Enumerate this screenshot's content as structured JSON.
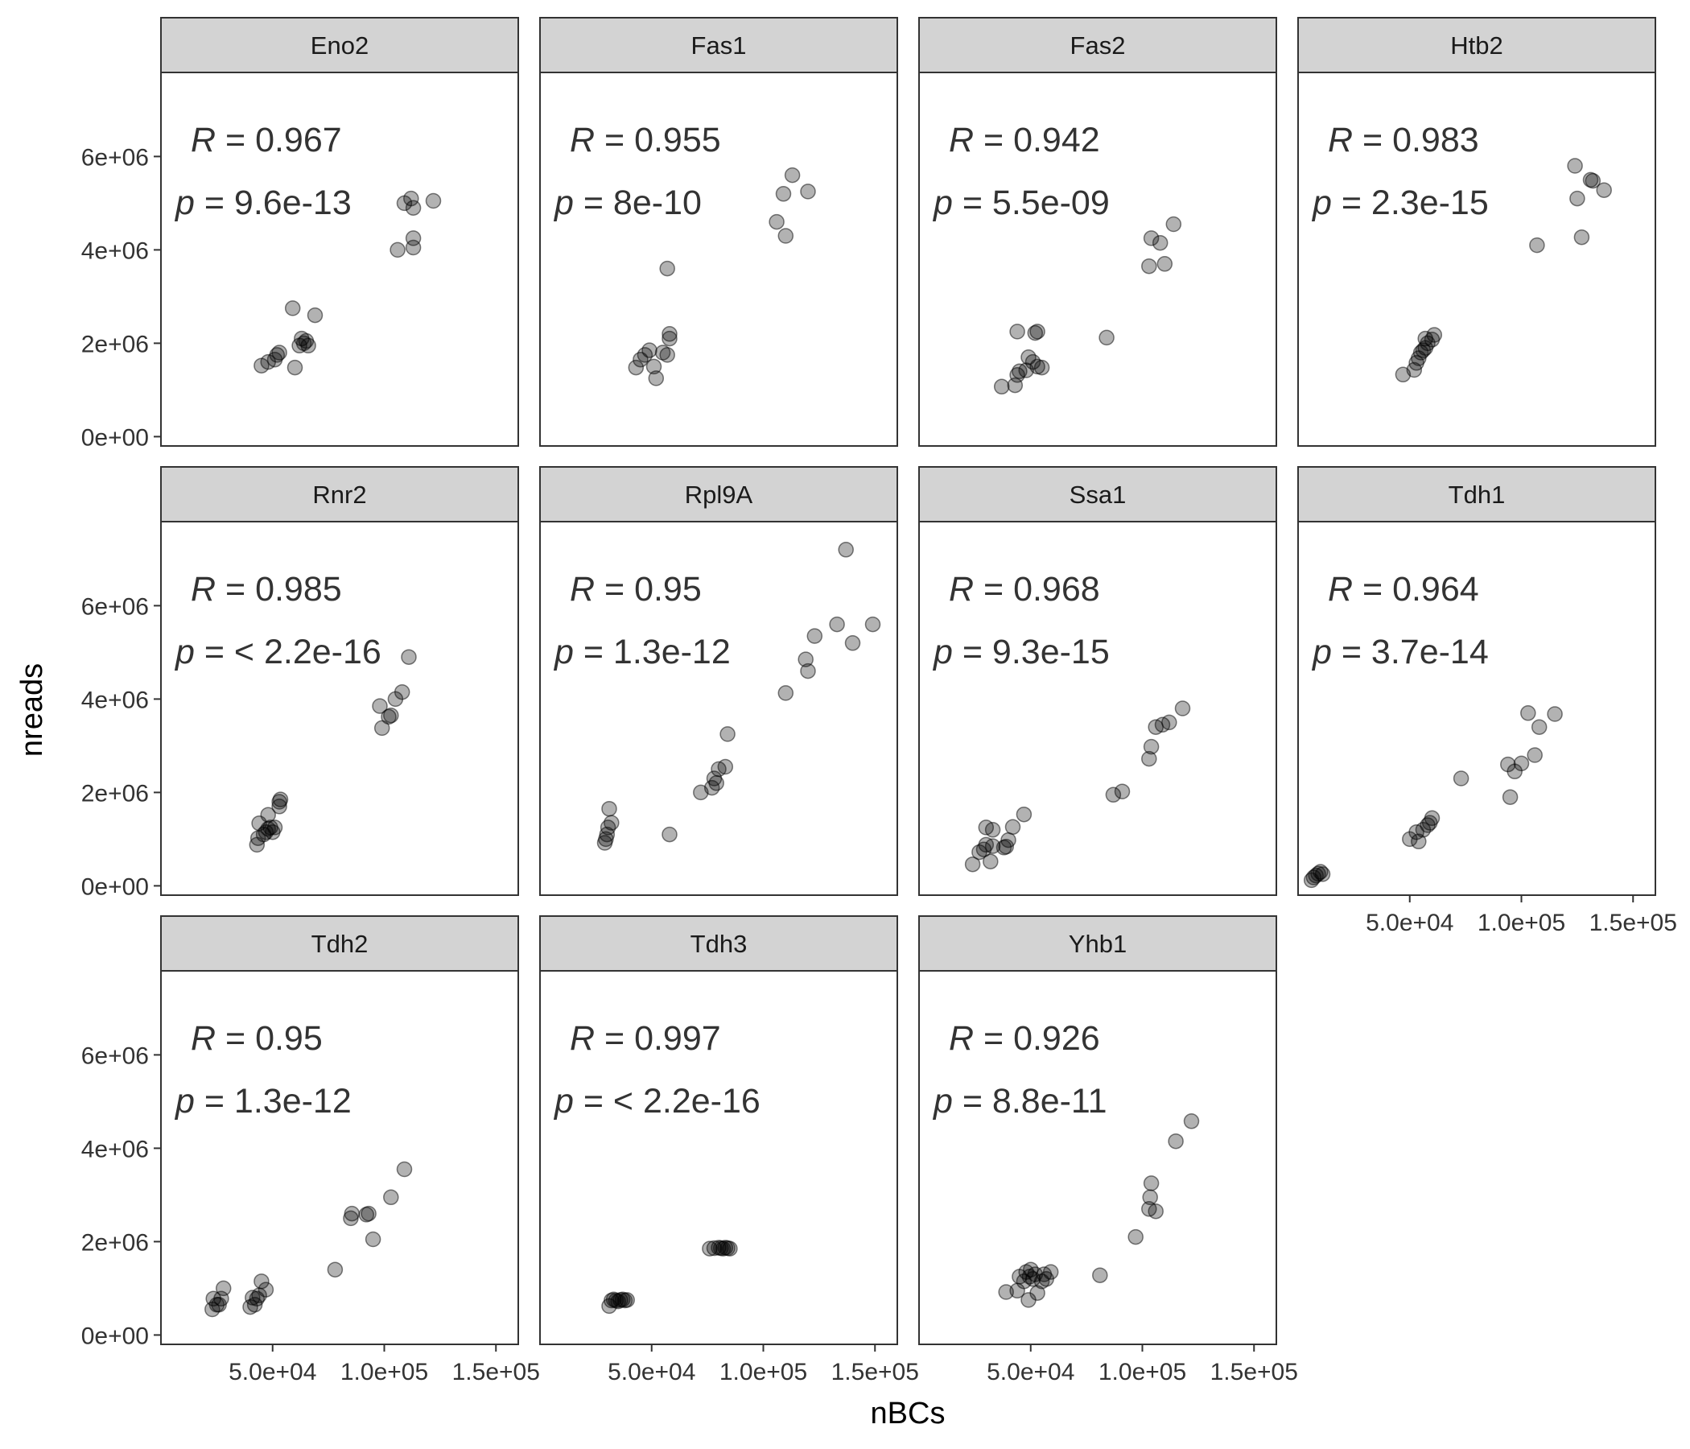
{
  "figure": {
    "xlabel": "nBCs",
    "ylabel": "nreads",
    "x_ticks": [
      "5.0e+04",
      "1.0e+05",
      "1.5e+05"
    ],
    "y_ticks": [
      "0e+00",
      "2e+06",
      "4e+06",
      "6e+06"
    ],
    "point_color": "#000000",
    "point_alpha": 0.3,
    "strip_fill": "#d3d3d3",
    "panel_border": "#333333",
    "text_color": "#333333"
  },
  "chart_data": [
    {
      "type": "scatter",
      "title": "Eno2",
      "r_label": "R",
      "r_text": " = 0.967",
      "p_label": "p",
      "p_text": " = 9.6e-13",
      "xlim": [
        0,
        160000
      ],
      "ylim": [
        -200000,
        7800000
      ],
      "grid": false,
      "points": [
        [
          45000,
          1520000
        ],
        [
          48000,
          1600000
        ],
        [
          51000,
          1650000
        ],
        [
          52000,
          1750000
        ],
        [
          53000,
          1800000
        ],
        [
          60000,
          1480000
        ],
        [
          62000,
          1950000
        ],
        [
          63000,
          2100000
        ],
        [
          64000,
          2000000
        ],
        [
          65000,
          2050000
        ],
        [
          66000,
          1950000
        ],
        [
          59000,
          2750000
        ],
        [
          69000,
          2600000
        ],
        [
          106000,
          4000000
        ],
        [
          109000,
          5000000
        ],
        [
          112000,
          5100000
        ],
        [
          113000,
          4900000
        ],
        [
          113000,
          4050000
        ],
        [
          113000,
          4250000
        ],
        [
          122000,
          5050000
        ]
      ]
    },
    {
      "type": "scatter",
      "title": "Fas1",
      "r_label": "R",
      "r_text": " = 0.955",
      "p_label": "p",
      "p_text": " = 8e-10",
      "xlim": [
        0,
        160000
      ],
      "ylim": [
        -200000,
        7800000
      ],
      "grid": false,
      "points": [
        [
          43000,
          1480000
        ],
        [
          45000,
          1650000
        ],
        [
          47000,
          1750000
        ],
        [
          49000,
          1850000
        ],
        [
          51000,
          1500000
        ],
        [
          52000,
          1250000
        ],
        [
          55000,
          1800000
        ],
        [
          57000,
          1750000
        ],
        [
          58000,
          2100000
        ],
        [
          58000,
          2200000
        ],
        [
          57000,
          3600000
        ],
        [
          106000,
          4600000
        ],
        [
          110000,
          4300000
        ],
        [
          109000,
          5200000
        ],
        [
          113000,
          5600000
        ],
        [
          120000,
          5250000
        ]
      ]
    },
    {
      "type": "scatter",
      "title": "Fas2",
      "r_label": "R",
      "r_text": " = 0.942",
      "p_label": "p",
      "p_text": " = 5.5e-09",
      "xlim": [
        0,
        160000
      ],
      "ylim": [
        -200000,
        7800000
      ],
      "grid": false,
      "points": [
        [
          37000,
          1070000
        ],
        [
          43000,
          1100000
        ],
        [
          44000,
          1320000
        ],
        [
          45000,
          1400000
        ],
        [
          48000,
          1420000
        ],
        [
          49000,
          1700000
        ],
        [
          51000,
          1600000
        ],
        [
          53000,
          1500000
        ],
        [
          55000,
          1480000
        ],
        [
          44000,
          2250000
        ],
        [
          52000,
          2220000
        ],
        [
          53000,
          2250000
        ],
        [
          84000,
          2120000
        ],
        [
          103000,
          3650000
        ],
        [
          104000,
          4250000
        ],
        [
          108000,
          4150000
        ],
        [
          110000,
          3700000
        ],
        [
          114000,
          4550000
        ]
      ]
    },
    {
      "type": "scatter",
      "title": "Htb2",
      "r_label": "R",
      "r_text": " = 0.983",
      "p_label": "p",
      "p_text": " = 2.3e-15",
      "xlim": [
        0,
        160000
      ],
      "ylim": [
        -200000,
        7800000
      ],
      "grid": false,
      "points": [
        [
          47000,
          1330000
        ],
        [
          52000,
          1430000
        ],
        [
          53000,
          1580000
        ],
        [
          54000,
          1680000
        ],
        [
          55000,
          1800000
        ],
        [
          56000,
          1850000
        ],
        [
          57000,
          1900000
        ],
        [
          58000,
          2000000
        ],
        [
          57000,
          2100000
        ],
        [
          60000,
          2080000
        ],
        [
          61000,
          2180000
        ],
        [
          107000,
          4100000
        ],
        [
          124000,
          5800000
        ],
        [
          125000,
          5100000
        ],
        [
          127000,
          4270000
        ],
        [
          131000,
          5500000
        ],
        [
          132000,
          5480000
        ],
        [
          137000,
          5280000
        ]
      ]
    },
    {
      "type": "scatter",
      "title": "Rnr2",
      "r_label": "R",
      "r_text": " = 0.985",
      "p_label": "p",
      "p_text": " = < 2.2e-16",
      "xlim": [
        0,
        160000
      ],
      "ylim": [
        -200000,
        7800000
      ],
      "grid": false,
      "points": [
        [
          43000,
          880000
        ],
        [
          43500,
          1020000
        ],
        [
          44000,
          1340000
        ],
        [
          46000,
          1100000
        ],
        [
          47000,
          1150000
        ],
        [
          48000,
          1220000
        ],
        [
          49000,
          1250000
        ],
        [
          50000,
          1150000
        ],
        [
          51000,
          1250000
        ],
        [
          48000,
          1520000
        ],
        [
          53000,
          1700000
        ],
        [
          53000,
          1800000
        ],
        [
          53500,
          1850000
        ],
        [
          98000,
          3850000
        ],
        [
          99000,
          3380000
        ],
        [
          102000,
          3620000
        ],
        [
          103000,
          3650000
        ],
        [
          105000,
          4000000
        ],
        [
          108000,
          4150000
        ],
        [
          111000,
          4900000
        ]
      ]
    },
    {
      "type": "scatter",
      "title": "Rpl9A",
      "r_label": "R",
      "r_text": " = 0.95",
      "p_label": "p",
      "p_text": " = 1.3e-12",
      "xlim": [
        0,
        160000
      ],
      "ylim": [
        -200000,
        7800000
      ],
      "grid": false,
      "points": [
        [
          29000,
          920000
        ],
        [
          29500,
          1000000
        ],
        [
          30000,
          1100000
        ],
        [
          30500,
          1250000
        ],
        [
          31000,
          1650000
        ],
        [
          32000,
          1350000
        ],
        [
          58000,
          1100000
        ],
        [
          72000,
          2000000
        ],
        [
          77000,
          2100000
        ],
        [
          78000,
          2300000
        ],
        [
          79000,
          2200000
        ],
        [
          80000,
          2500000
        ],
        [
          83000,
          2550000
        ],
        [
          84000,
          3250000
        ],
        [
          110000,
          4130000
        ],
        [
          119000,
          4850000
        ],
        [
          120000,
          4600000
        ],
        [
          123000,
          5350000
        ],
        [
          133000,
          5600000
        ],
        [
          137000,
          7200000
        ],
        [
          140000,
          5200000
        ],
        [
          149000,
          5600000
        ]
      ]
    },
    {
      "type": "scatter",
      "title": "Ssa1",
      "r_label": "R",
      "r_text": " = 0.968",
      "p_label": "p",
      "p_text": " = 9.3e-15",
      "xlim": [
        0,
        160000
      ],
      "ylim": [
        -200000,
        7800000
      ],
      "grid": false,
      "points": [
        [
          24000,
          460000
        ],
        [
          27000,
          720000
        ],
        [
          29000,
          780000
        ],
        [
          30000,
          880000
        ],
        [
          32000,
          520000
        ],
        [
          33000,
          850000
        ],
        [
          30000,
          1250000
        ],
        [
          33000,
          1200000
        ],
        [
          38000,
          820000
        ],
        [
          39000,
          840000
        ],
        [
          40000,
          980000
        ],
        [
          42000,
          1260000
        ],
        [
          47000,
          1530000
        ],
        [
          87000,
          1950000
        ],
        [
          91000,
          2020000
        ],
        [
          103000,
          2720000
        ],
        [
          104000,
          2980000
        ],
        [
          106000,
          3400000
        ],
        [
          109000,
          3450000
        ],
        [
          112000,
          3500000
        ],
        [
          118000,
          3800000
        ]
      ]
    },
    {
      "type": "scatter",
      "title": "Tdh1",
      "r_label": "R",
      "r_text": " = 0.964",
      "p_label": "p",
      "p_text": " = 3.7e-14",
      "xlim": [
        0,
        160000
      ],
      "ylim": [
        -200000,
        7800000
      ],
      "grid": false,
      "points": [
        [
          6000,
          120000
        ],
        [
          7000,
          180000
        ],
        [
          8000,
          220000
        ],
        [
          9000,
          260000
        ],
        [
          10000,
          300000
        ],
        [
          11000,
          250000
        ],
        [
          50000,
          1000000
        ],
        [
          53000,
          1150000
        ],
        [
          54000,
          950000
        ],
        [
          56000,
          1200000
        ],
        [
          58000,
          1300000
        ],
        [
          60000,
          1450000
        ],
        [
          59000,
          1350000
        ],
        [
          73000,
          2300000
        ],
        [
          94000,
          2600000
        ],
        [
          95000,
          1900000
        ],
        [
          97000,
          2450000
        ],
        [
          100000,
          2620000
        ],
        [
          103000,
          3700000
        ],
        [
          106000,
          2800000
        ],
        [
          108000,
          3400000
        ],
        [
          115000,
          3680000
        ]
      ]
    },
    {
      "type": "scatter",
      "title": "Tdh2",
      "r_label": "R",
      "r_text": " = 0.95",
      "p_label": "p",
      "p_text": " = 1.3e-12",
      "xlim": [
        0,
        160000
      ],
      "ylim": [
        -200000,
        7800000
      ],
      "grid": false,
      "points": [
        [
          23000,
          550000
        ],
        [
          23500,
          780000
        ],
        [
          25000,
          650000
        ],
        [
          26000,
          650000
        ],
        [
          27000,
          780000
        ],
        [
          28000,
          1000000
        ],
        [
          40000,
          600000
        ],
        [
          41000,
          800000
        ],
        [
          42000,
          650000
        ],
        [
          43000,
          780000
        ],
        [
          44000,
          850000
        ],
        [
          45000,
          1150000
        ],
        [
          47000,
          970000
        ],
        [
          78000,
          1400000
        ],
        [
          85000,
          2500000
        ],
        [
          85500,
          2600000
        ],
        [
          92000,
          2580000
        ],
        [
          93000,
          2600000
        ],
        [
          95000,
          2050000
        ],
        [
          103000,
          2950000
        ],
        [
          109000,
          3550000
        ]
      ]
    },
    {
      "type": "scatter",
      "title": "Tdh3",
      "r_label": "R",
      "r_text": " = 0.997",
      "p_label": "p",
      "p_text": " = < 2.2e-16",
      "xlim": [
        0,
        160000
      ],
      "ylim": [
        -200000,
        7800000
      ],
      "grid": false,
      "points": [
        [
          31000,
          620000
        ],
        [
          32000,
          740000
        ],
        [
          33000,
          760000
        ],
        [
          34000,
          740000
        ],
        [
          35000,
          720000
        ],
        [
          36000,
          750000
        ],
        [
          37000,
          760000
        ],
        [
          38000,
          740000
        ],
        [
          39000,
          750000
        ],
        [
          76000,
          1850000
        ],
        [
          78000,
          1860000
        ],
        [
          80000,
          1870000
        ],
        [
          81000,
          1860000
        ],
        [
          82000,
          1850000
        ],
        [
          83000,
          1870000
        ],
        [
          84000,
          1860000
        ],
        [
          85000,
          1850000
        ]
      ]
    },
    {
      "type": "scatter",
      "title": "Yhb1",
      "r_label": "R",
      "r_text": " = 0.926",
      "p_label": "p",
      "p_text": " = 8.8e-11",
      "xlim": [
        0,
        160000
      ],
      "ylim": [
        -200000,
        7800000
      ],
      "grid": false,
      "points": [
        [
          39000,
          920000
        ],
        [
          44000,
          950000
        ],
        [
          45000,
          1250000
        ],
        [
          47000,
          1150000
        ],
        [
          48000,
          1350000
        ],
        [
          49000,
          750000
        ],
        [
          49500,
          1250000
        ],
        [
          50000,
          1400000
        ],
        [
          51000,
          1200000
        ],
        [
          52000,
          1300000
        ],
        [
          53000,
          900000
        ],
        [
          55000,
          1150000
        ],
        [
          56000,
          1300000
        ],
        [
          57000,
          1200000
        ],
        [
          59000,
          1350000
        ],
        [
          81000,
          1280000
        ],
        [
          97000,
          2100000
        ],
        [
          103000,
          2700000
        ],
        [
          103500,
          2950000
        ],
        [
          104000,
          3250000
        ],
        [
          106000,
          2650000
        ],
        [
          115000,
          4150000
        ],
        [
          122000,
          4580000
        ]
      ]
    }
  ]
}
